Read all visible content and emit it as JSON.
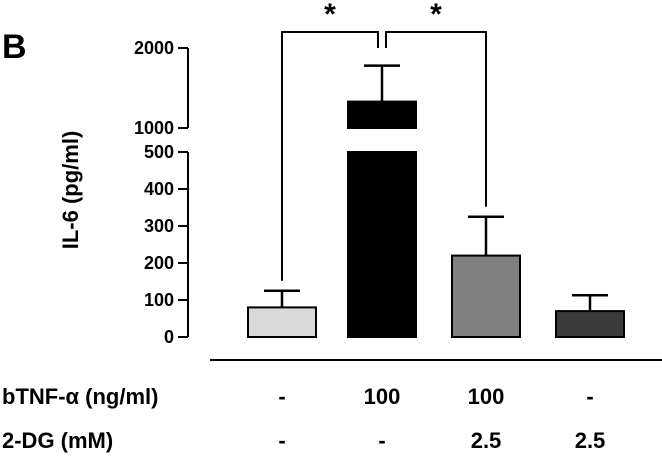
{
  "panel_label": "B",
  "chart_data": {
    "type": "bar",
    "ylabel": "IL-6 (pg/ml)",
    "y_axis_broken": true,
    "y_lower_range": [
      0,
      500
    ],
    "y_upper_range": [
      1000,
      2000
    ],
    "y_tick_labels_lower": [
      "0",
      "100",
      "200",
      "300",
      "400",
      "500"
    ],
    "y_tick_labels_upper": [
      "1000",
      "2000"
    ],
    "values": [
      80,
      1330,
      220,
      70
    ],
    "error_upper": [
      125,
      1780,
      325,
      113
    ],
    "colors": [
      "#d9d9d9",
      "#000000",
      "#808080",
      "#3a3a3a"
    ],
    "significance": [
      {
        "from": 0,
        "to": 1,
        "label": "*"
      },
      {
        "from": 1,
        "to": 2,
        "label": "*"
      }
    ],
    "conditions": [
      {
        "label": "bTNF-α (ng/ml)",
        "values": [
          "-",
          "100",
          "100",
          "-"
        ]
      },
      {
        "label": "2-DG (mM)",
        "values": [
          "-",
          "-",
          "2.5",
          "2.5"
        ]
      }
    ]
  }
}
